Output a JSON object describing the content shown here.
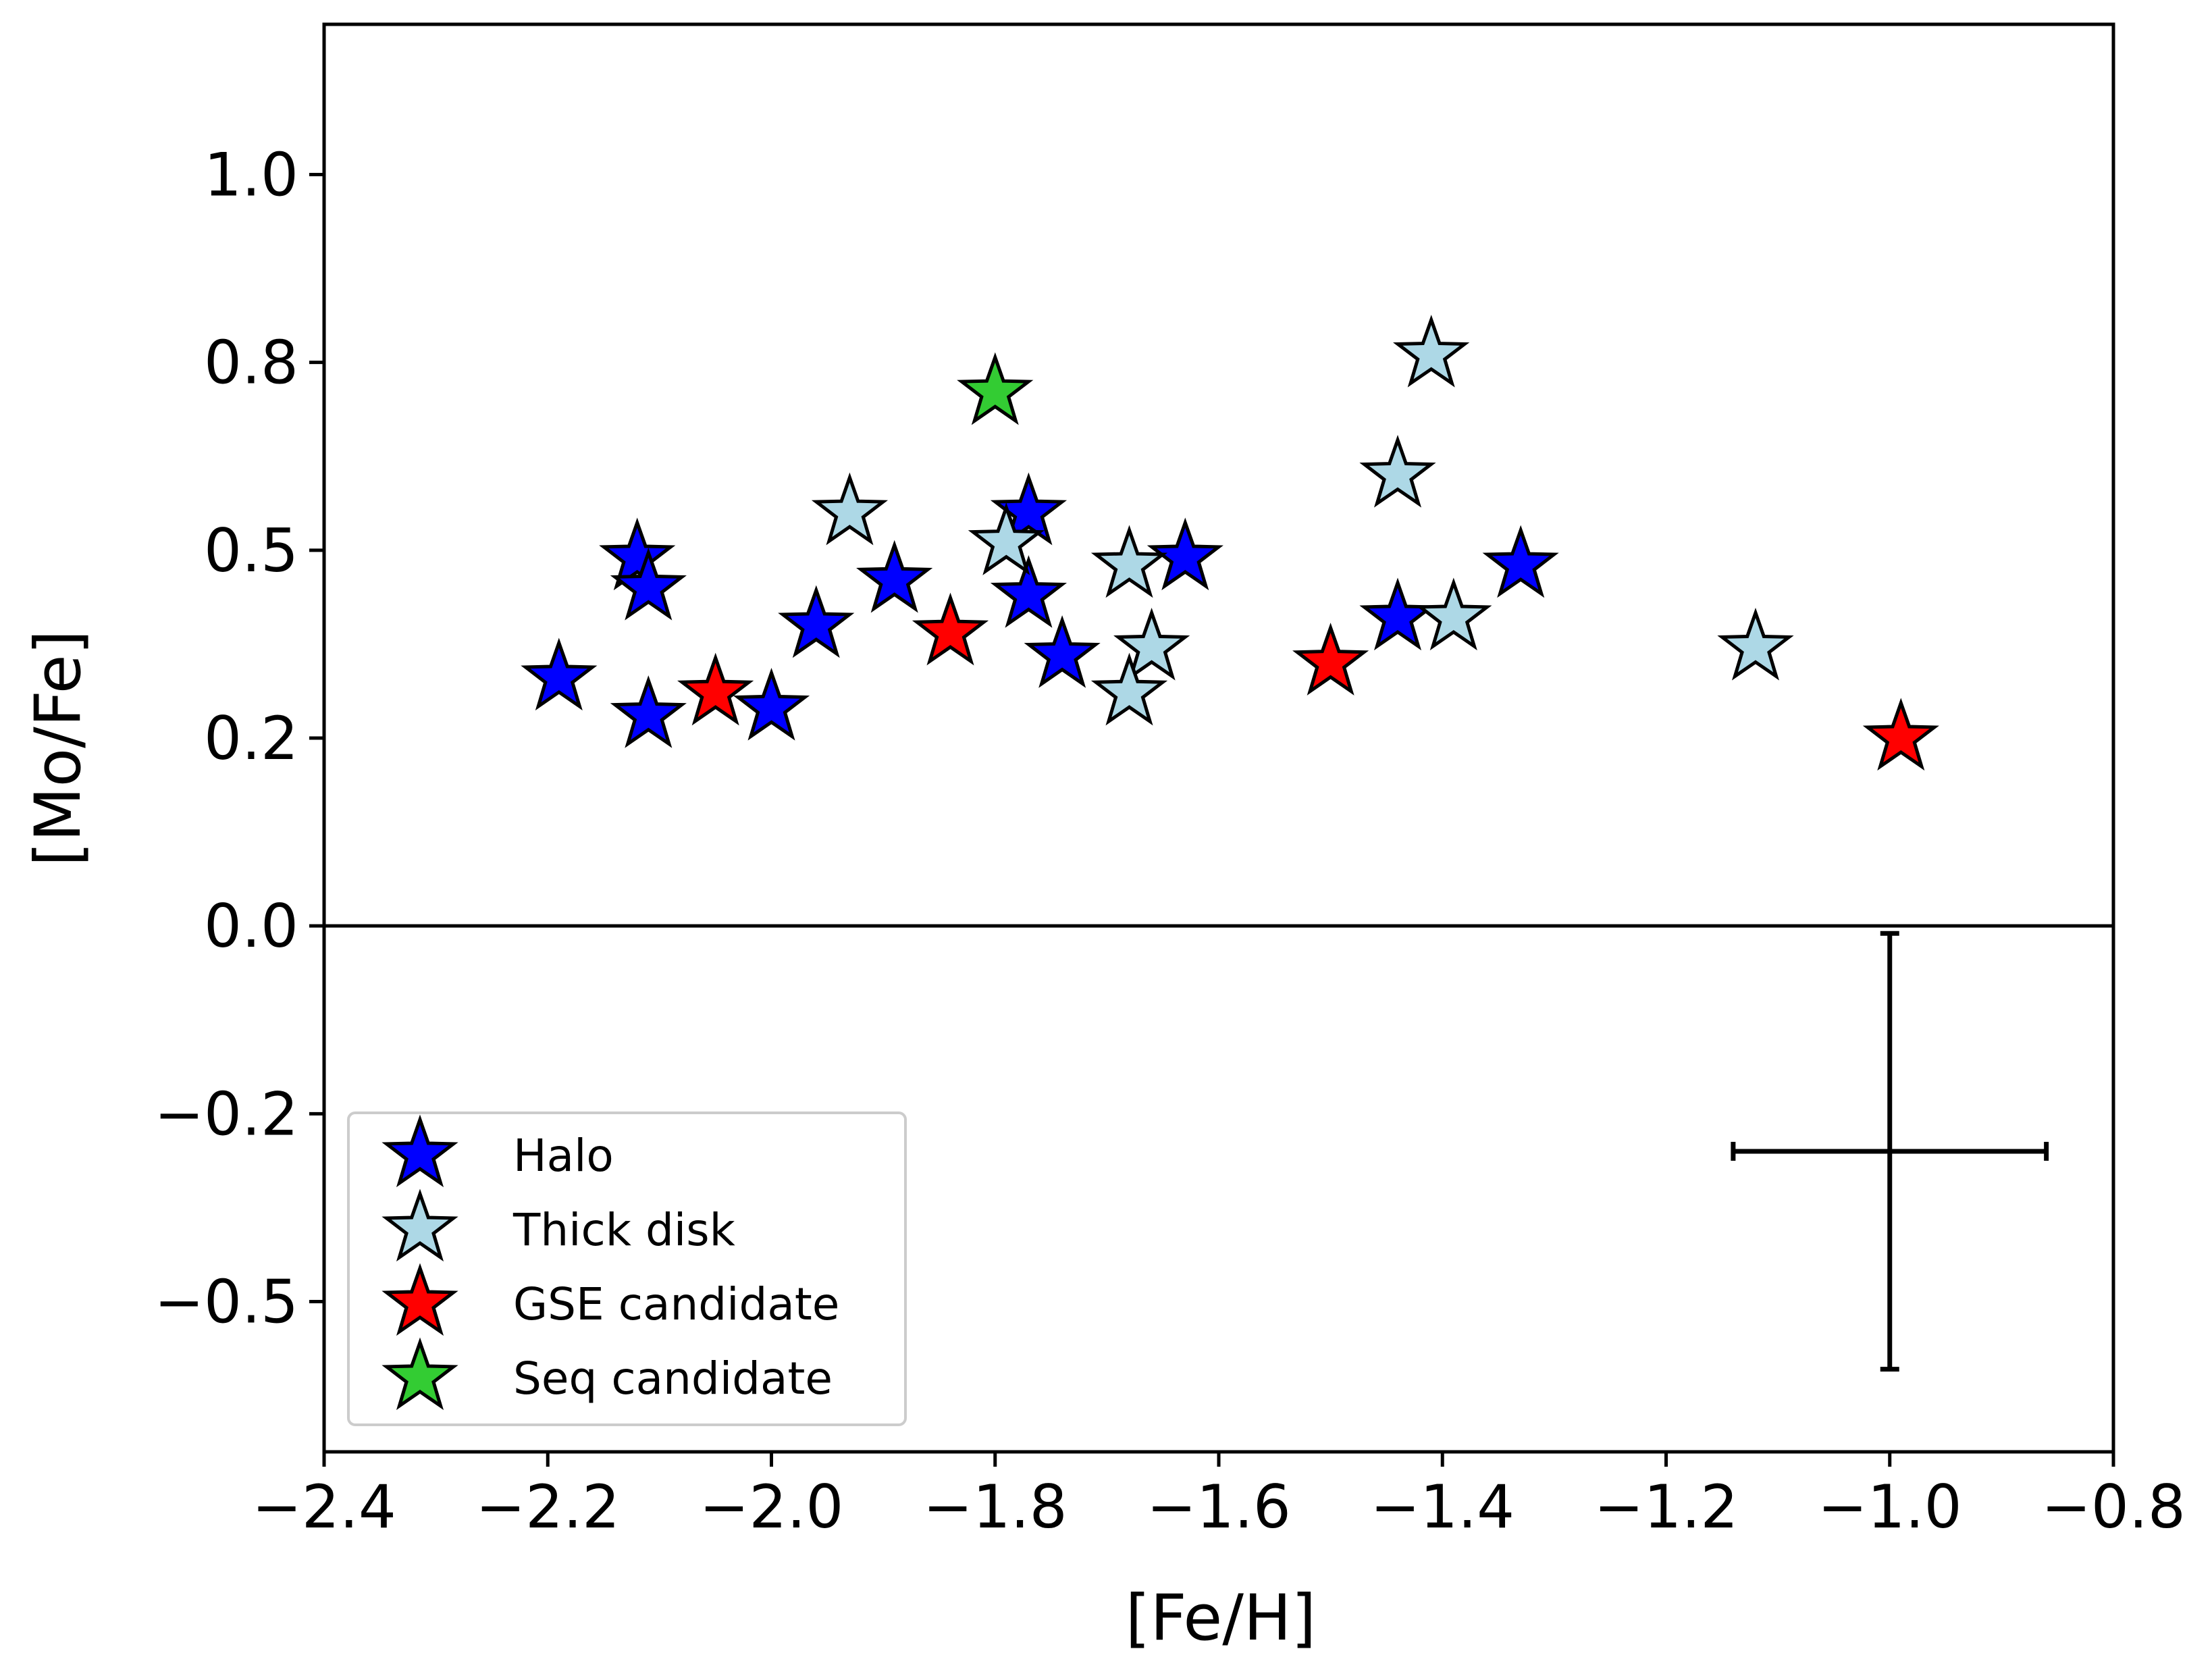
{
  "chart_data": {
    "type": "scatter",
    "xlabel": "[Fe/H]",
    "ylabel": "[Mo/Fe]",
    "xlim": [
      -2.4,
      -0.8
    ],
    "ylim": [
      -0.7,
      1.2
    ],
    "x_ticks": [
      -2.4,
      -2.2,
      -2.0,
      -1.8,
      -1.6,
      -1.4,
      -1.2,
      -1.0,
      -0.8
    ],
    "x_tick_labels": [
      "−2.4",
      "−2.2",
      "−2.0",
      "−1.8",
      "−1.6",
      "−1.4",
      "−1.2",
      "−1.0",
      "−0.8"
    ],
    "y_ticks": [
      -0.5,
      -0.25,
      0.0,
      0.25,
      0.5,
      0.75,
      1.0
    ],
    "y_tick_labels": [
      "−0.5",
      "−0.2",
      "0.0",
      "0.2",
      "0.5",
      "0.8",
      "1.0"
    ],
    "reference_line_y": 0.0,
    "grid": false,
    "legend_position": "lower-left",
    "error_bar": {
      "x": -1.0,
      "y": -0.3,
      "xerr": 0.14,
      "yerr": 0.29
    },
    "series": [
      {
        "name": "Halo",
        "color": "#0000ff",
        "points": [
          {
            "x": -2.19,
            "y": 0.33
          },
          {
            "x": -2.12,
            "y": 0.49
          },
          {
            "x": -2.11,
            "y": 0.45
          },
          {
            "x": -2.11,
            "y": 0.28
          },
          {
            "x": -2.0,
            "y": 0.29
          },
          {
            "x": -1.96,
            "y": 0.4
          },
          {
            "x": -1.89,
            "y": 0.46
          },
          {
            "x": -1.77,
            "y": 0.55
          },
          {
            "x": -1.77,
            "y": 0.44
          },
          {
            "x": -1.74,
            "y": 0.36
          },
          {
            "x": -1.63,
            "y": 0.49
          },
          {
            "x": -1.44,
            "y": 0.41
          },
          {
            "x": -1.33,
            "y": 0.48
          }
        ]
      },
      {
        "name": "Thick disk",
        "color": "#add8e6",
        "points": [
          {
            "x": -1.93,
            "y": 0.55
          },
          {
            "x": -1.79,
            "y": 0.51
          },
          {
            "x": -1.68,
            "y": 0.48
          },
          {
            "x": -1.66,
            "y": 0.37
          },
          {
            "x": -1.68,
            "y": 0.31
          },
          {
            "x": -1.44,
            "y": 0.6
          },
          {
            "x": -1.41,
            "y": 0.76
          },
          {
            "x": -1.39,
            "y": 0.41
          },
          {
            "x": -1.12,
            "y": 0.37
          }
        ]
      },
      {
        "name": "GSE candidate",
        "color": "#ff0000",
        "points": [
          {
            "x": -2.05,
            "y": 0.31
          },
          {
            "x": -1.84,
            "y": 0.39
          },
          {
            "x": -1.5,
            "y": 0.35
          },
          {
            "x": -0.99,
            "y": 0.25
          }
        ]
      },
      {
        "name": "Seq candidate",
        "color": "#33cc33",
        "points": [
          {
            "x": -1.8,
            "y": 0.71
          }
        ]
      }
    ]
  }
}
